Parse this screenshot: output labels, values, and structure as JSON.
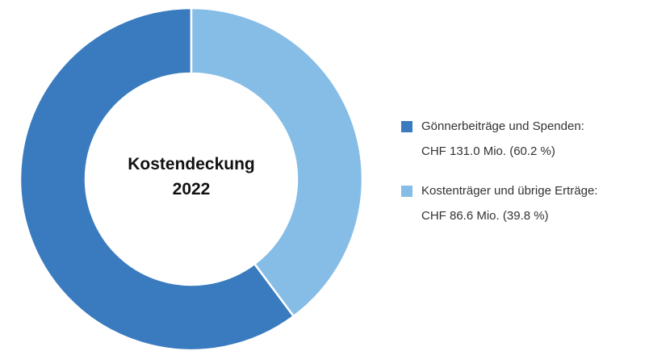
{
  "chart_data": {
    "type": "donut",
    "title": "Kostendeckung 2022",
    "categories": [
      "Gönnerbeiträge und Spenden:",
      "Kostenträger und übrige Erträge:"
    ],
    "values": [
      131.0,
      86.6
    ],
    "value_labels": [
      "CHF 131.0 Mio. (60.2 %)",
      "CHF 86.6 Mio. (39.8 %)"
    ],
    "colors": [
      "#3a7bbf",
      "#86bde6"
    ],
    "legend": "right"
  }
}
